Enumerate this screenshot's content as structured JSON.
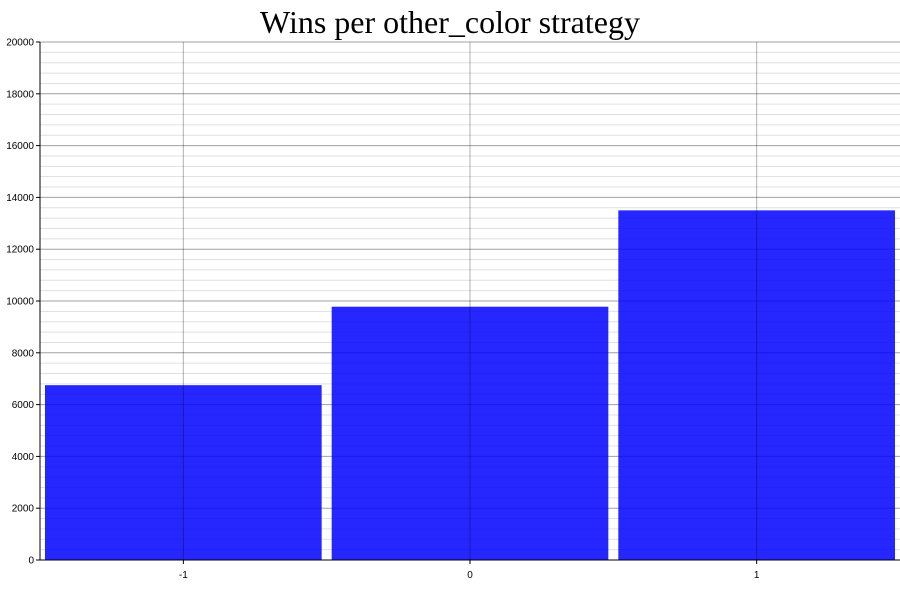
{
  "chart_data": {
    "type": "bar",
    "title": "Wins per other_color strategy",
    "xlabel": "",
    "ylabel": "",
    "categories": [
      "-1",
      "0",
      "1"
    ],
    "values": [
      6750,
      9780,
      13500
    ],
    "ylim": [
      0,
      20000
    ],
    "y_ticks": [
      0,
      2000,
      4000,
      6000,
      8000,
      10000,
      12000,
      14000,
      16000,
      18000,
      20000
    ],
    "y_minor_step": 400,
    "grid": true,
    "legend": "none",
    "colors": {
      "bar": "#0000ff",
      "major_grid": "#a0a0a0",
      "minor_grid": "#e0e0e0",
      "axis": "#000000"
    }
  }
}
